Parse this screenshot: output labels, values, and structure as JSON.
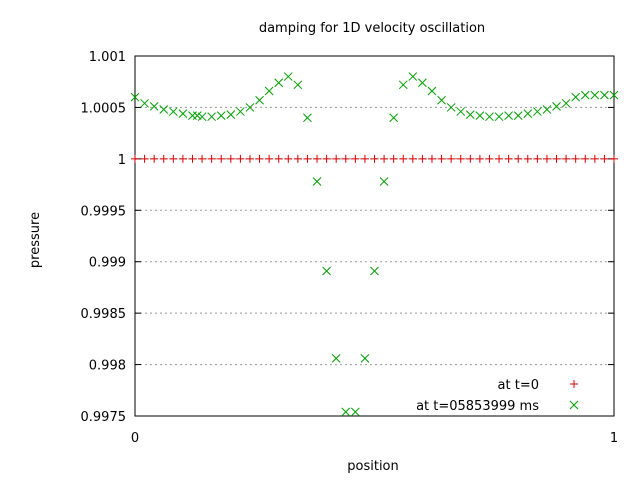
{
  "chart_data": {
    "type": "scatter",
    "title": "damping for 1D velocity oscillation",
    "xlabel": "position",
    "ylabel": "pressure",
    "xlim": [
      0,
      1
    ],
    "ylim": [
      0.9975,
      1.001
    ],
    "x_ticks": [
      "0",
      "1"
    ],
    "y_ticks": [
      "0.9975",
      "0.998",
      "0.9985",
      "0.999",
      "0.9995",
      "1",
      "1.0005",
      "1.001"
    ],
    "y_tick_values": [
      0.9975,
      0.998,
      0.9985,
      0.999,
      0.9995,
      1.0,
      1.0005,
      1.001
    ],
    "grid": "horizontal dotted",
    "legend_position": "bottom-right",
    "series": [
      {
        "name": "at t=0",
        "marker": "plus",
        "color": "#dd0000",
        "x": [
          0,
          0.02,
          0.04,
          0.06,
          0.08,
          0.1,
          0.12,
          0.14,
          0.16,
          0.18,
          0.2,
          0.22,
          0.24,
          0.26,
          0.28,
          0.3,
          0.32,
          0.34,
          0.36,
          0.38,
          0.4,
          0.42,
          0.44,
          0.46,
          0.48,
          0.5,
          0.52,
          0.54,
          0.56,
          0.58,
          0.6,
          0.62,
          0.64,
          0.66,
          0.68,
          0.7,
          0.72,
          0.74,
          0.76,
          0.78,
          0.8,
          0.82,
          0.84,
          0.86,
          0.88,
          0.9,
          0.92,
          0.94,
          0.96,
          0.98,
          1.0
        ],
        "y": [
          1,
          1,
          1,
          1,
          1,
          1,
          1,
          1,
          1,
          1,
          1,
          1,
          1,
          1,
          1,
          1,
          1,
          1,
          1,
          1,
          1,
          1,
          1,
          1,
          1,
          1,
          1,
          1,
          1,
          1,
          1,
          1,
          1,
          1,
          1,
          1,
          1,
          1,
          1,
          1,
          1,
          1,
          1,
          1,
          1,
          1,
          1,
          1,
          1,
          1,
          1
        ]
      },
      {
        "name": "at t=05853999 ms",
        "marker": "cross",
        "color": "#00a000",
        "x": [
          0,
          0.02,
          0.04,
          0.06,
          0.08,
          0.1,
          0.12,
          0.13,
          0.14,
          0.16,
          0.18,
          0.2,
          0.22,
          0.24,
          0.26,
          0.28,
          0.3,
          0.32,
          0.34,
          0.36,
          0.38,
          0.4,
          0.42,
          0.44,
          0.46,
          0.48,
          0.5,
          0.52,
          0.54,
          0.56,
          0.58,
          0.6,
          0.62,
          0.64,
          0.66,
          0.68,
          0.7,
          0.72,
          0.74,
          0.76,
          0.78,
          0.8,
          0.82,
          0.84,
          0.86,
          0.88,
          0.9,
          0.92,
          0.94,
          0.96,
          0.98,
          1.0
        ],
        "y": [
          1.0006,
          1.00054,
          1.00051,
          1.00048,
          1.00046,
          1.00044,
          1.00042,
          1.00042,
          1.00041,
          1.00041,
          1.00042,
          1.00043,
          1.00046,
          1.0005,
          1.00057,
          1.00066,
          1.00074,
          1.0008,
          1.00072,
          1.0004,
          0.99978,
          0.99891,
          0.99806,
          0.99754,
          0.99754,
          0.99806,
          0.99891,
          0.99978,
          1.0004,
          1.00072,
          1.0008,
          1.00074,
          1.00066,
          1.00057,
          1.0005,
          1.00046,
          1.00043,
          1.00042,
          1.00041,
          1.00041,
          1.00042,
          1.00042,
          1.00044,
          1.00046,
          1.00048,
          1.00051,
          1.00054,
          1.0006,
          1.00062,
          1.00062,
          1.00062,
          1.00062
        ]
      }
    ]
  }
}
